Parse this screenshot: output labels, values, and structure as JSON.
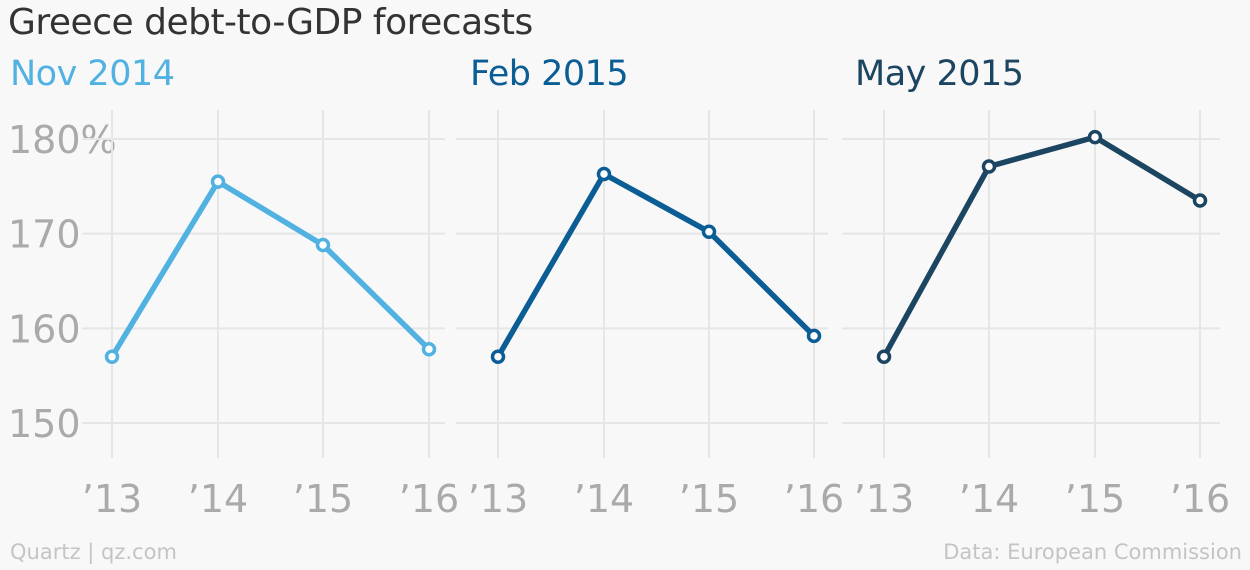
{
  "title": "Greece debt-to-GDP forecasts",
  "footer": {
    "source_left": "Quartz | qz.com",
    "source_right": "Data: European Commission"
  },
  "colors": {
    "background": "#f8f8f8",
    "grid": "#e6e6e6",
    "tick_text": "#aaaaaa",
    "nov_2014": "#51b2e1",
    "feb_2015": "#0b5d95",
    "may_2015": "#1c4561"
  },
  "chart_data": [
    {
      "type": "line",
      "title": "Nov 2014",
      "color": "#51b2e1",
      "x": [
        "’13",
        "’14",
        "’15",
        "’16"
      ],
      "values": [
        157,
        175.5,
        168.8,
        157.8
      ],
      "ylim": [
        146,
        182
      ],
      "y_ticks": [
        180,
        170,
        160,
        150
      ],
      "y_tick_labels": [
        "180%",
        "170",
        "160",
        "150"
      ],
      "grid": true,
      "xlabel": "",
      "ylabel": ""
    },
    {
      "type": "line",
      "title": "Feb 2015",
      "color": "#0b5d95",
      "x": [
        "’13",
        "’14",
        "’15",
        "’16"
      ],
      "values": [
        157,
        176.3,
        170.2,
        159.2
      ],
      "ylim": [
        146,
        182
      ],
      "grid": true,
      "xlabel": "",
      "ylabel": ""
    },
    {
      "type": "line",
      "title": "May 2015",
      "color": "#1c4561",
      "x": [
        "’13",
        "’14",
        "’15",
        "’16"
      ],
      "values": [
        157,
        177.1,
        180.2,
        173.5
      ],
      "ylim": [
        146,
        182
      ],
      "grid": true,
      "xlabel": "",
      "ylabel": ""
    }
  ]
}
